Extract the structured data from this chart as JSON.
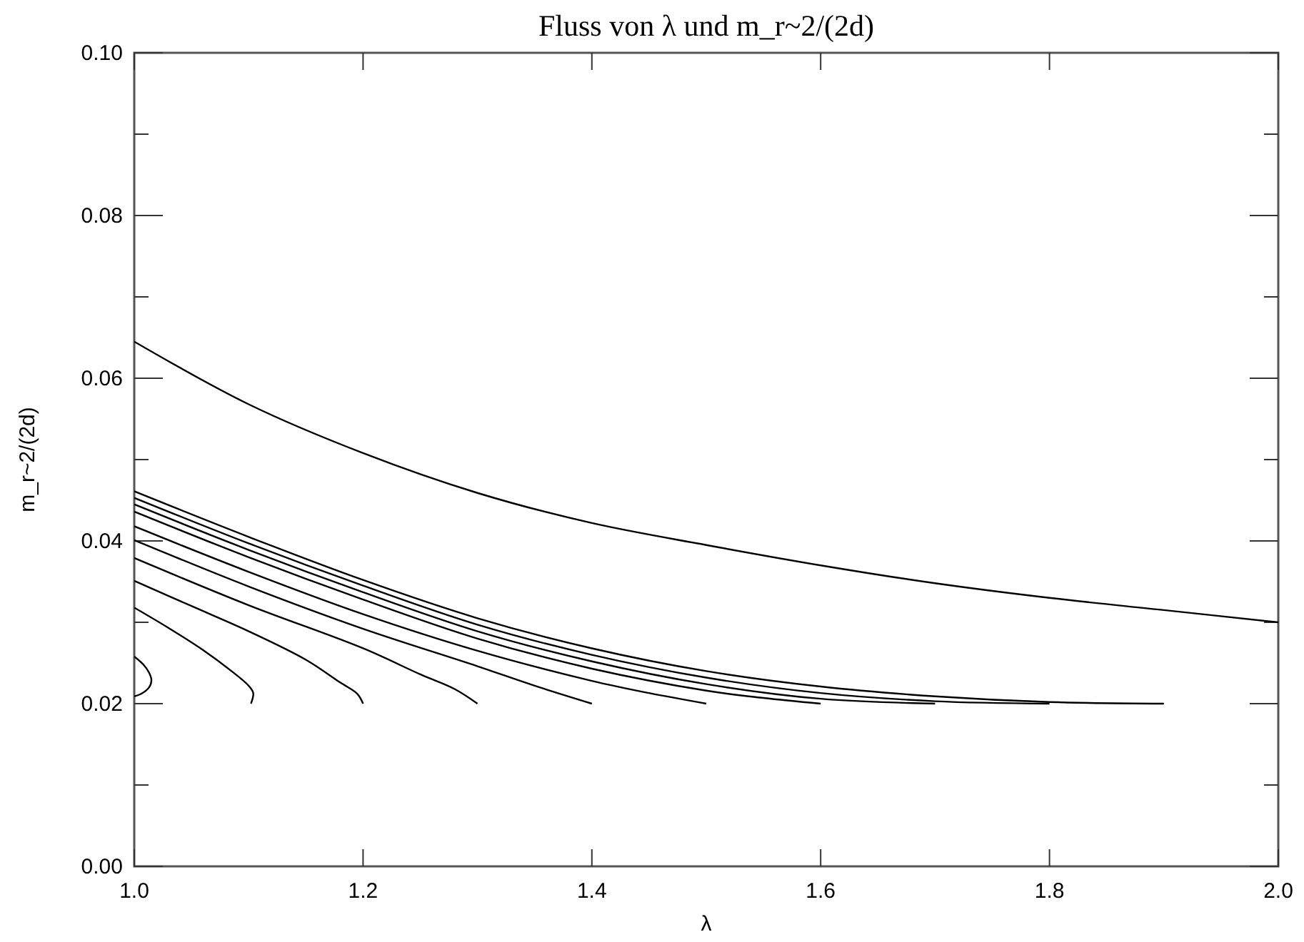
{
  "chart_data": {
    "type": "line",
    "title": "Fluss von λ und m_r~2/(2d)",
    "xlabel": "λ",
    "ylabel": "m_r~2/(2d)",
    "xlim": [
      1.0,
      2.0
    ],
    "ylim": [
      0.0,
      0.1
    ],
    "xticks": [
      {
        "value": 1.0,
        "label": "1.0"
      },
      {
        "value": 1.2,
        "label": "1.2"
      },
      {
        "value": 1.4,
        "label": "1.4"
      },
      {
        "value": 1.6,
        "label": "1.6"
      },
      {
        "value": 1.8,
        "label": "1.8"
      },
      {
        "value": 2.0,
        "label": "2.0"
      }
    ],
    "yticks": [
      {
        "value": 0,
        "label": "0.00"
      },
      {
        "value": 0.01,
        "label": null
      },
      {
        "value": 0.02,
        "label": "0.02"
      },
      {
        "value": 0.03,
        "label": null
      },
      {
        "value": 0.04,
        "label": "0.04"
      },
      {
        "value": 0.05,
        "label": null
      },
      {
        "value": 0.06,
        "label": "0.06"
      },
      {
        "value": 0.07,
        "label": null
      },
      {
        "value": 0.08,
        "label": "0.08"
      },
      {
        "value": 0.09,
        "label": null
      },
      {
        "value": 0.1,
        "label": "0.10"
      }
    ],
    "grid": false,
    "marker": "none",
    "line_style": "solid",
    "series": [
      {
        "color": "#000000",
        "x": [
          1.0,
          1.1,
          1.2,
          1.3,
          1.4,
          1.5,
          1.6,
          1.7,
          1.8,
          1.9,
          2.0
        ],
        "values": [
          0.0645,
          0.0568,
          0.0508,
          0.0459,
          0.0422,
          0.0395,
          0.037,
          0.0348,
          0.033,
          0.0315,
          0.03
        ]
      },
      {
        "color": "#000000",
        "x": [
          1.0,
          1.1,
          1.2,
          1.3,
          1.4,
          1.5,
          1.6,
          1.7,
          1.8,
          1.9
        ],
        "values": [
          0.0461,
          0.0405,
          0.0352,
          0.0305,
          0.0268,
          0.024,
          0.0221,
          0.0209,
          0.0202,
          0.02
        ]
      },
      {
        "color": "#000000",
        "x": [
          1.0,
          1.1,
          1.2,
          1.3,
          1.4,
          1.5,
          1.6,
          1.7,
          1.8
        ],
        "values": [
          0.0453,
          0.0397,
          0.0345,
          0.0297,
          0.026,
          0.0232,
          0.0213,
          0.0203,
          0.02
        ]
      },
      {
        "color": "#000000",
        "x": [
          1.0,
          1.1,
          1.2,
          1.3,
          1.4,
          1.5,
          1.6,
          1.7
        ],
        "values": [
          0.0445,
          0.0389,
          0.0337,
          0.0289,
          0.0252,
          0.0224,
          0.0206,
          0.02
        ]
      },
      {
        "color": "#000000",
        "x": [
          1.0,
          1.1,
          1.2,
          1.3,
          1.4,
          1.5,
          1.55,
          1.6
        ],
        "values": [
          0.0436,
          0.038,
          0.0328,
          0.028,
          0.0243,
          0.0216,
          0.0207,
          0.02
        ]
      },
      {
        "color": "#000000",
        "x": [
          1.0,
          1.1,
          1.2,
          1.3,
          1.4,
          1.45,
          1.5
        ],
        "values": [
          0.0418,
          0.0362,
          0.031,
          0.0265,
          0.0228,
          0.0213,
          0.02
        ]
      },
      {
        "color": "#000000",
        "x": [
          1.0,
          1.1,
          1.2,
          1.3,
          1.35,
          1.4
        ],
        "values": [
          0.0401,
          0.0344,
          0.0292,
          0.0246,
          0.0222,
          0.02
        ]
      },
      {
        "color": "#000000",
        "x": [
          1.0,
          1.1,
          1.2,
          1.25,
          1.28,
          1.3
        ],
        "values": [
          0.0379,
          0.0321,
          0.0268,
          0.0236,
          0.0218,
          0.02
        ]
      },
      {
        "color": "#000000",
        "x": [
          1.0,
          1.05,
          1.1,
          1.15,
          1.18,
          1.195,
          1.2
        ],
        "values": [
          0.0351,
          0.032,
          0.0289,
          0.0254,
          0.0226,
          0.0212,
          0.02
        ]
      },
      {
        "color": "#000000",
        "x": [
          1.0,
          1.03,
          1.06,
          1.085,
          1.1,
          1.104,
          1.102
        ],
        "values": [
          0.0318,
          0.0293,
          0.0266,
          0.024,
          0.0222,
          0.0213,
          0.02
        ]
      },
      {
        "color": "#000000",
        "x": [
          1.0,
          1.008,
          1.013,
          1.015,
          1.013,
          1.006,
          1.0
        ],
        "values": [
          0.0258,
          0.0248,
          0.0238,
          0.0229,
          0.022,
          0.0212,
          0.0209
        ]
      }
    ]
  }
}
